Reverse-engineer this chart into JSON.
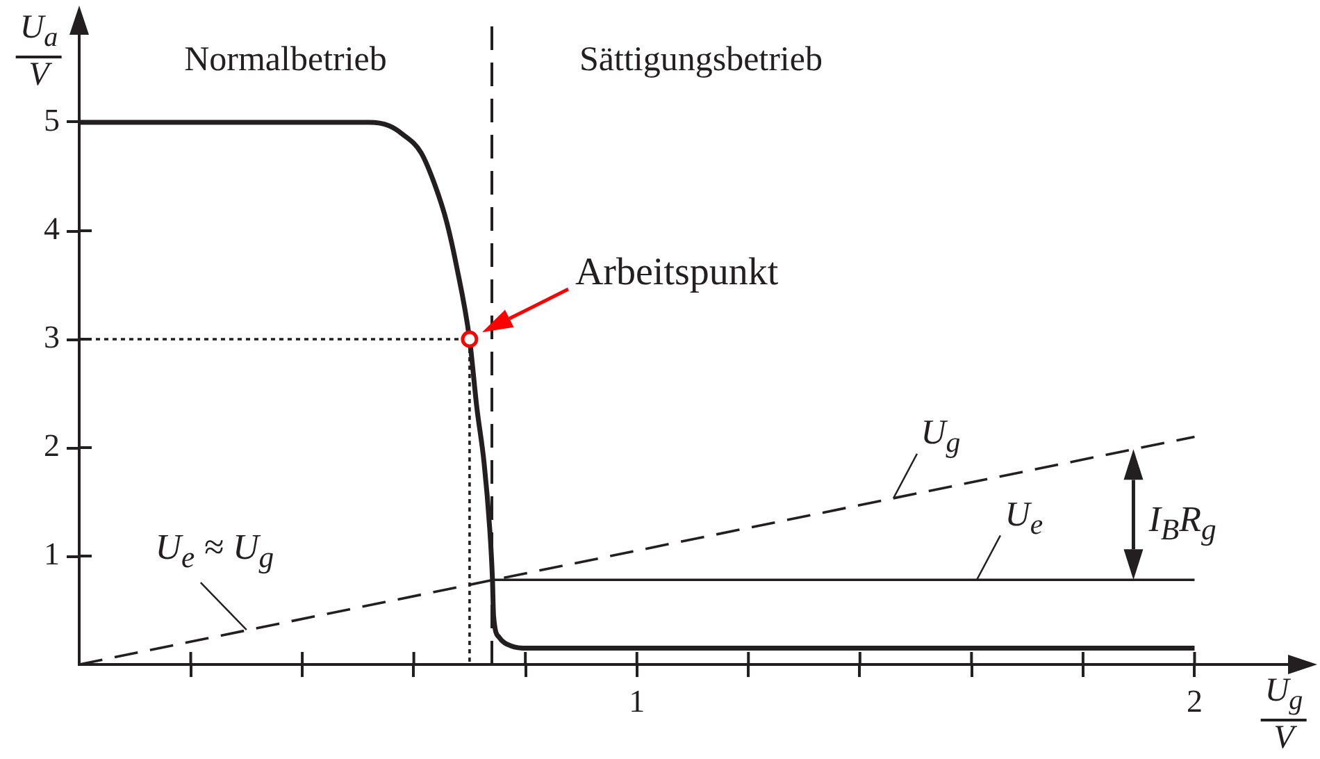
{
  "chart_data": {
    "type": "line",
    "xlabel": "U$_{g}$\nV",
    "ylabel": "U$_{a}$\nV",
    "xlim": [
      0,
      2.2
    ],
    "ylim": [
      0,
      6
    ],
    "xticks": [
      {
        "value": 0.2,
        "label": null
      },
      {
        "value": 0.4,
        "label": null
      },
      {
        "value": 0.6,
        "label": null
      },
      {
        "value": 0.8,
        "label": null
      },
      1,
      {
        "value": 1.2,
        "label": null
      },
      {
        "value": 1.4,
        "label": null
      },
      {
        "value": 1.6,
        "label": null
      },
      {
        "value": 1.8,
        "label": null
      },
      2
    ],
    "yticks": [
      1,
      2,
      3,
      4,
      5
    ],
    "series": [
      {
        "color": "#231f20",
        "x": [
          0,
          0.52,
          0.555,
          0.58,
          0.613,
          0.638,
          0.659,
          0.676,
          0.7,
          0.713,
          0.726,
          0.736,
          0.741,
          0.743,
          0.753,
          0.775,
          0.804,
          2
        ],
        "values": [
          5,
          5,
          4.97,
          4.89,
          4.72,
          4.42,
          4.08,
          3.69,
          3,
          2.37,
          1.86,
          1.26,
          0.79,
          0.45,
          0.25,
          0.17,
          0.15,
          0.15
        ]
      },
      {
        "color": "#231f20",
        "line_style": "dotted",
        "x": [
          0,
          0.7,
          0.7
        ],
        "values": [
          3,
          3,
          0
        ]
      },
      {
        "name": "U$_{g}$",
        "color": "#231f20",
        "line_style": "dashed",
        "x": [
          0,
          2
        ],
        "values": [
          0,
          2.1
        ]
      },
      {
        "name": "U$_{e}$",
        "color": "#231f20",
        "x": [
          0.74,
          2
        ],
        "values": [
          0.78,
          0.78
        ]
      },
      {
        "type": "scatter",
        "color": "#ff0000",
        "marker": "circle",
        "x": [
          0.7
        ],
        "values": [
          3
        ]
      }
    ],
    "ref_lines": [
      {
        "axis": "x",
        "value": 0.74,
        "color": "#231f20",
        "line_style": "dashed"
      }
    ],
    "annotations": [
      "Normalbetrieb",
      "Sättigungsbetrieb",
      {
        "text": "Arbeitspunkt",
        "x": 0.7,
        "y": 3
      },
      {
        "text": "U$_{e}$ ≈ U$_{g}$",
        "x": 0.3,
        "y": 0.32
      },
      "I$_{B}$R$_{g}$"
    ]
  }
}
